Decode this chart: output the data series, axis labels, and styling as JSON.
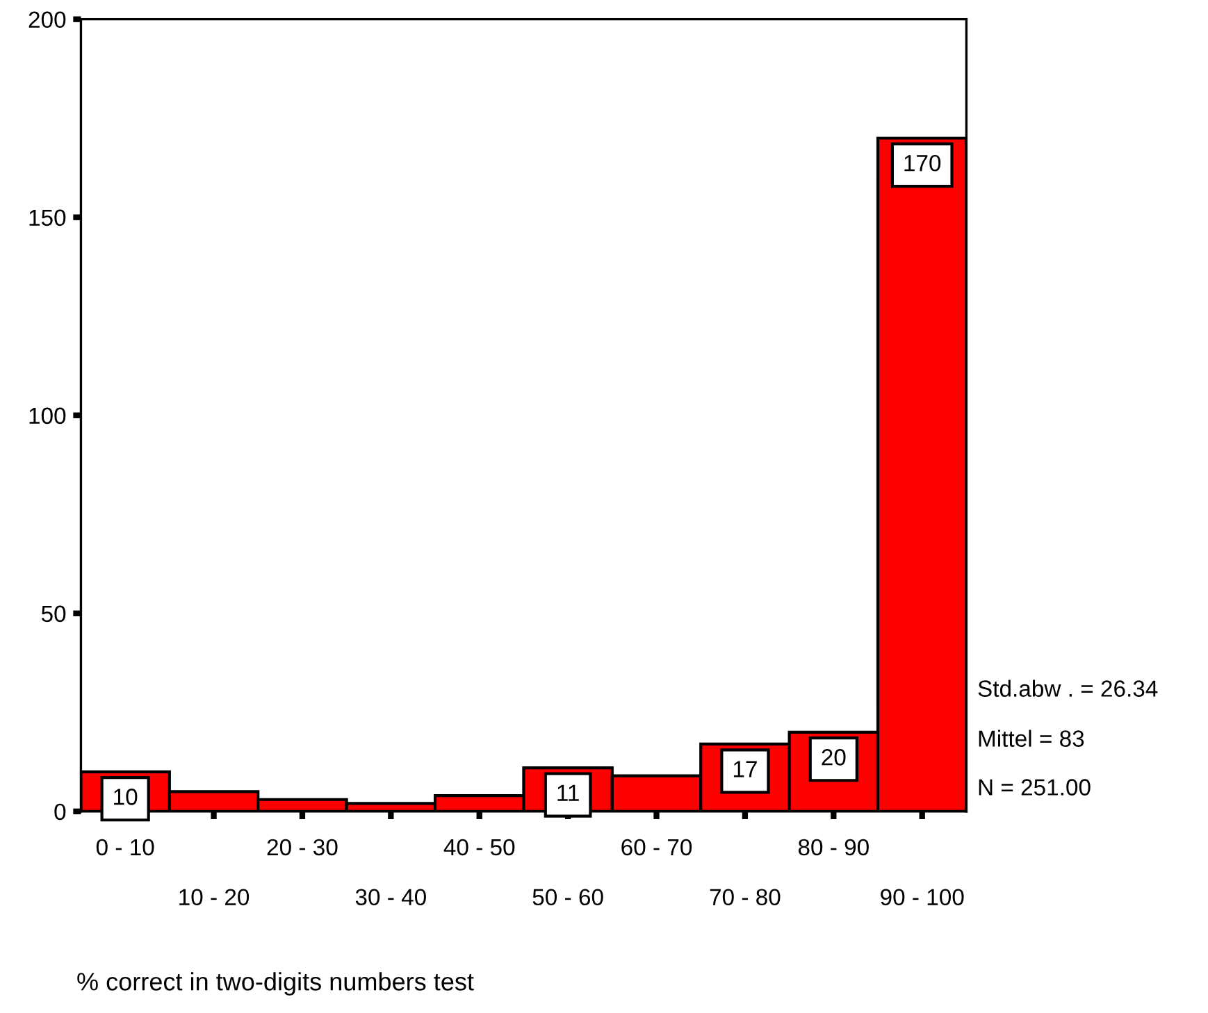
{
  "chart_data": {
    "type": "bar",
    "categories": [
      "0 - 10",
      "10 - 20",
      "20 - 30",
      "30 - 40",
      "40 - 50",
      "50 - 60",
      "60 - 70",
      "70 - 80",
      "80 - 90",
      "90 - 100"
    ],
    "values": [
      10,
      5,
      3,
      2,
      4,
      11,
      9,
      17,
      20,
      170
    ],
    "value_labels": [
      "10",
      null,
      null,
      null,
      null,
      "11",
      null,
      "17",
      "20",
      "170"
    ],
    "color": "#ff0000",
    "xlabel": "% correct in two-digits numbers test",
    "ylim": [
      0,
      200
    ],
    "yticks": [
      0,
      50,
      100,
      150,
      200
    ],
    "annotations": [
      "Std.abw . = 26.34",
      "Mittel = 83",
      "N = 251.00"
    ],
    "grid": false
  }
}
